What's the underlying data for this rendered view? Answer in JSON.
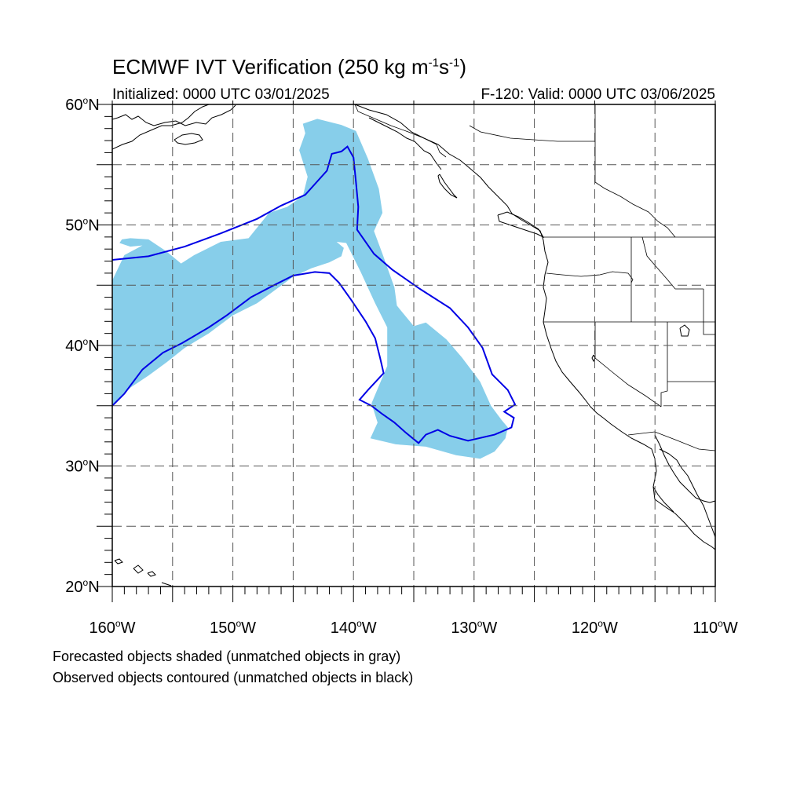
{
  "title": {
    "text": "ECMWF IVT Verification (250 kg m",
    "sup1": "-1",
    "mid": "s",
    "sup2": "-1",
    "end": ")"
  },
  "subtitle_left": "Initialized: 0000 UTC 03/01/2025",
  "subtitle_right": "F-120: Valid: 0000 UTC 03/06/2025",
  "captions": [
    "Forecasted objects shaded (unmatched objects in gray)",
    "Observed objects contoured (unmatched objects in black)"
  ],
  "map": {
    "lon_range": [
      -160,
      -110
    ],
    "lat_range": [
      20,
      60
    ],
    "lon_ticks": [
      {
        "value": -160,
        "num": "160",
        "hemi": "W"
      },
      {
        "value": -150,
        "num": "150",
        "hemi": "W"
      },
      {
        "value": -140,
        "num": "140",
        "hemi": "W"
      },
      {
        "value": -130,
        "num": "130",
        "hemi": "W"
      },
      {
        "value": -120,
        "num": "120",
        "hemi": "W"
      },
      {
        "value": -110,
        "num": "110",
        "hemi": "W"
      }
    ],
    "lat_ticks": [
      {
        "value": 60,
        "num": "60",
        "hemi": "N"
      },
      {
        "value": 50,
        "num": "50",
        "hemi": "N"
      },
      {
        "value": 40,
        "num": "40",
        "hemi": "N"
      },
      {
        "value": 30,
        "num": "30",
        "hemi": "N"
      },
      {
        "value": 20,
        "num": "20",
        "hemi": "N"
      }
    ],
    "grid_lons": [
      -155,
      -150,
      -145,
      -140,
      -135,
      -130,
      -125,
      -120,
      -115
    ],
    "grid_lats": [
      55,
      50,
      45,
      40,
      35,
      30,
      25
    ],
    "grid_style": "dashed",
    "colors": {
      "forecast_fill": "#87ceea",
      "observed_contour": "#0000e6",
      "coastline": "#000000",
      "grid": "#555555"
    },
    "forecast_object": [
      [
        -148.7,
        48.9
      ],
      [
        -151,
        48.6
      ],
      [
        -153.2,
        47.5
      ],
      [
        -154.3,
        46.8
      ],
      [
        -155.5,
        47.8
      ],
      [
        -157,
        48.8
      ],
      [
        -158.5,
        48.9
      ],
      [
        -159.2,
        48.8
      ],
      [
        -159.4,
        48.5
      ],
      [
        -158.5,
        48.2
      ],
      [
        -157.5,
        48.3
      ],
      [
        -159,
        47.5
      ],
      [
        -160,
        45.4
      ],
      [
        -160,
        35
      ],
      [
        -158.5,
        36.5
      ],
      [
        -157,
        37.5
      ],
      [
        -155.5,
        38.6
      ],
      [
        -154,
        39.8
      ],
      [
        -152,
        41
      ],
      [
        -150,
        42.5
      ],
      [
        -148,
        43.5
      ],
      [
        -146.5,
        44.6
      ],
      [
        -145,
        45.7
      ],
      [
        -143.5,
        46.4
      ],
      [
        -142,
        46.9
      ],
      [
        -141,
        47.4
      ],
      [
        -140.8,
        48.1
      ],
      [
        -141.4,
        48.6
      ],
      [
        -140.6,
        48.5
      ],
      [
        -139.4,
        46.1
      ],
      [
        -138.2,
        43.5
      ],
      [
        -137.2,
        41.5
      ],
      [
        -137.2,
        38.3
      ],
      [
        -138.5,
        35.2
      ],
      [
        -138,
        33.6
      ],
      [
        -138.6,
        32.3
      ],
      [
        -136.5,
        31.8
      ],
      [
        -134,
        31.6
      ],
      [
        -131.5,
        30.9
      ],
      [
        -129.5,
        30.6
      ],
      [
        -128.3,
        31.2
      ],
      [
        -127.4,
        32.3
      ],
      [
        -127.2,
        33.2
      ],
      [
        -127.7,
        33.8
      ],
      [
        -128.6,
        35
      ],
      [
        -129.5,
        37
      ],
      [
        -131,
        39
      ],
      [
        -132.3,
        40.5
      ],
      [
        -134,
        41.9
      ],
      [
        -135,
        41.6
      ],
      [
        -136.4,
        43.3
      ],
      [
        -136.6,
        44.8
      ],
      [
        -137.6,
        47.6
      ],
      [
        -138.3,
        49.5
      ],
      [
        -137.6,
        51
      ],
      [
        -137.9,
        53
      ],
      [
        -138.8,
        55.5
      ],
      [
        -139.8,
        57.8
      ],
      [
        -141,
        58.3
      ],
      [
        -143,
        58.8
      ],
      [
        -144.2,
        58.4
      ],
      [
        -144,
        57.6
      ],
      [
        -144.5,
        56.2
      ],
      [
        -143.8,
        54
      ],
      [
        -144.2,
        52.4
      ],
      [
        -145.5,
        51.5
      ],
      [
        -147,
        51
      ],
      [
        -148.7,
        48.9
      ]
    ],
    "observed_contour": [
      [
        -160,
        47.1
      ],
      [
        -157,
        47.4
      ],
      [
        -154,
        48.2
      ],
      [
        -151,
        49.3
      ],
      [
        -148,
        50.5
      ],
      [
        -146,
        51.6
      ],
      [
        -144,
        52.5
      ],
      [
        -142.2,
        54.5
      ],
      [
        -141.8,
        55.9
      ],
      [
        -141,
        56.1
      ],
      [
        -140.5,
        56.5
      ],
      [
        -140,
        55.6
      ],
      [
        -139.8,
        53.6
      ],
      [
        -139.6,
        51.5
      ],
      [
        -139.7,
        49.6
      ],
      [
        -138.3,
        47.6
      ],
      [
        -136.8,
        46.3
      ],
      [
        -134.5,
        44.7
      ],
      [
        -132,
        43.1
      ],
      [
        -130.5,
        41.5
      ],
      [
        -129.3,
        39.8
      ],
      [
        -128.5,
        37.6
      ],
      [
        -127.2,
        36.3
      ],
      [
        -126.6,
        35.1
      ],
      [
        -127.5,
        34.5
      ],
      [
        -126.7,
        34
      ],
      [
        -126.9,
        33.2
      ],
      [
        -128.3,
        32.6
      ],
      [
        -130.5,
        32.1
      ],
      [
        -132,
        32.5
      ],
      [
        -133,
        33
      ],
      [
        -134,
        32.6
      ],
      [
        -134.6,
        31.9
      ],
      [
        -135.7,
        32.8
      ],
      [
        -136.6,
        33.6
      ],
      [
        -137.6,
        34.3
      ],
      [
        -138.5,
        35
      ],
      [
        -139.5,
        35.5
      ],
      [
        -138.8,
        36.3
      ],
      [
        -137.5,
        37.7
      ],
      [
        -137.8,
        39
      ],
      [
        -138.2,
        40.6
      ],
      [
        -139,
        42
      ],
      [
        -140.2,
        43.8
      ],
      [
        -141.2,
        45.2
      ],
      [
        -142,
        46
      ],
      [
        -143.2,
        46.1
      ],
      [
        -145,
        45.8
      ],
      [
        -146.6,
        45
      ],
      [
        -148.5,
        44
      ],
      [
        -150.5,
        42.5
      ],
      [
        -152,
        41.5
      ],
      [
        -154.2,
        40.2
      ],
      [
        -155.8,
        39.4
      ],
      [
        -157.5,
        38
      ],
      [
        -159,
        36
      ],
      [
        -160,
        35
      ]
    ]
  }
}
